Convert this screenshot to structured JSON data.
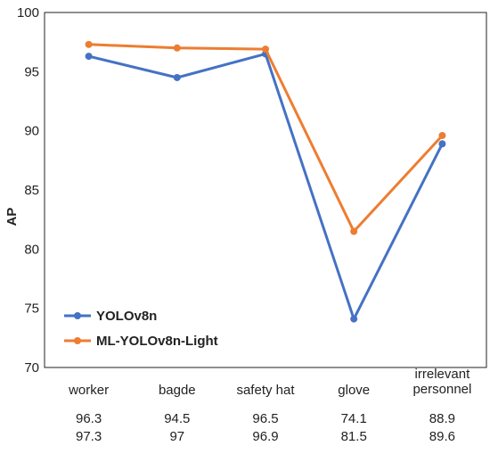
{
  "chart_data": {
    "type": "line",
    "title": "",
    "xlabel": "",
    "ylabel": "AP",
    "ylim": [
      70,
      100
    ],
    "yticks": [
      70,
      75,
      80,
      85,
      90,
      95,
      100
    ],
    "grid": false,
    "legend_position": "lower-left",
    "categories": [
      [
        "worker"
      ],
      [
        "bagde"
      ],
      [
        "safety hat"
      ],
      [
        "glove"
      ],
      [
        "irrelevant",
        "personnel"
      ]
    ],
    "series": [
      {
        "name": "YOLOv8n",
        "color": "#4472C4",
        "values": [
          96.3,
          94.5,
          96.5,
          74.1,
          88.9
        ],
        "value_labels": [
          "96.3",
          "94.5",
          "96.5",
          "74.1",
          "88.9"
        ]
      },
      {
        "name": "ML-YOLOv8n-Light",
        "color": "#ED7D31",
        "values": [
          97.3,
          97,
          96.9,
          81.5,
          89.6
        ],
        "value_labels": [
          "97.3",
          "97",
          "96.9",
          "81.5",
          "89.6"
        ]
      }
    ]
  }
}
